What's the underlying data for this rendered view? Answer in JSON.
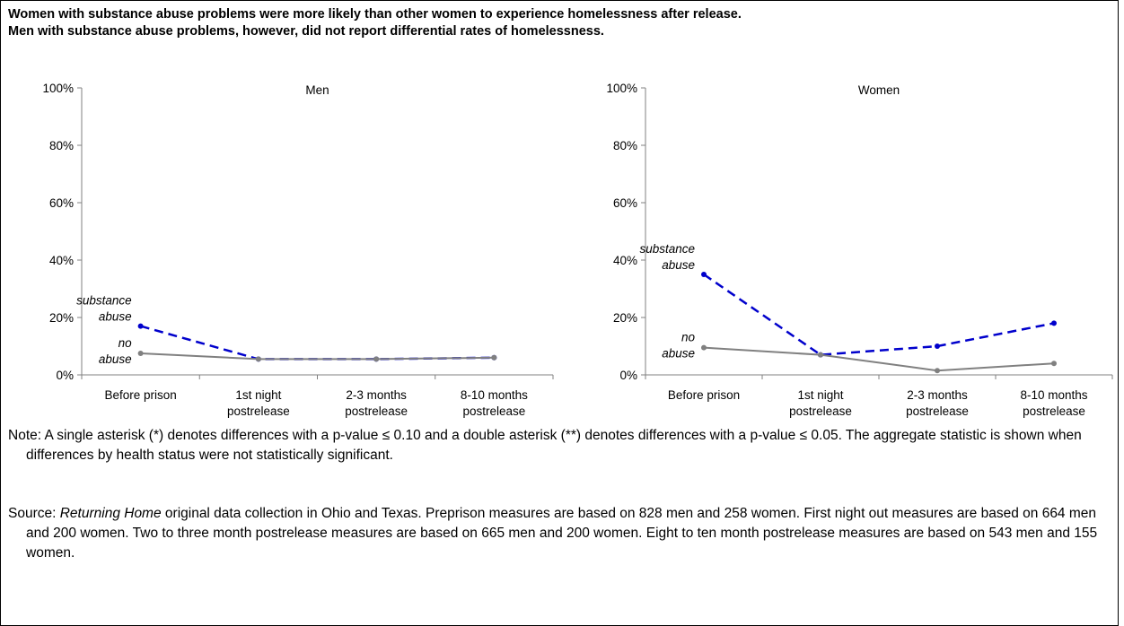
{
  "title": [
    "Women with substance abuse problems were more likely than other women to experience homelessness after release.",
    "Men with substance abuse problems, however, did not report differential rates of homelessness."
  ],
  "chart_data": [
    {
      "type": "line",
      "title": "Men",
      "categories": [
        "Before prison",
        "1st night\npostrelease",
        "2-3 months\npostrelease",
        "8-10 months\npostrelease"
      ],
      "series": [
        {
          "name": "substance\nabuse",
          "color": "#0000cc",
          "style": "dashed",
          "values": [
            17,
            5.5,
            5.5,
            6
          ]
        },
        {
          "name": "no\nabuse",
          "color": "#808080",
          "style": "solid",
          "values": [
            7.5,
            5.5,
            5.5,
            6
          ]
        }
      ],
      "ylim": [
        0,
        100
      ],
      "yticks": [
        {
          "value": 0,
          "label": "0%"
        },
        {
          "value": 20,
          "label": "20%"
        },
        {
          "value": 40,
          "label": "40%"
        },
        {
          "value": 60,
          "label": "60%"
        },
        {
          "value": 80,
          "label": "80%"
        },
        {
          "value": 100,
          "label": "100%"
        }
      ]
    },
    {
      "type": "line",
      "title": "Women",
      "categories": [
        "Before prison",
        "1st night\npostrelease",
        "2-3 months\npostrelease",
        "8-10 months\npostrelease"
      ],
      "series": [
        {
          "name": "substance\nabuse",
          "color": "#0000cc",
          "style": "dashed",
          "values": [
            35,
            7,
            10,
            18
          ]
        },
        {
          "name": "no\nabuse",
          "color": "#808080",
          "style": "solid",
          "values": [
            9.5,
            7,
            1.5,
            4
          ]
        }
      ],
      "ylim": [
        0,
        100
      ],
      "yticks": [
        {
          "value": 0,
          "label": "0%"
        },
        {
          "value": 20,
          "label": "20%"
        },
        {
          "value": 40,
          "label": "40%"
        },
        {
          "value": 60,
          "label": "60%"
        },
        {
          "value": 80,
          "label": "80%"
        },
        {
          "value": 100,
          "label": "100%"
        }
      ]
    }
  ],
  "notes": {
    "note": "Note: A single asterisk (*) denotes differences with a p-value ≤ 0.10 and a double asterisk (**) denotes differences with a p-value ≤ 0.05.  The aggregate statistic is shown when differences by health status were not statistically significant.",
    "source_label": "Source:",
    "source_title": "Returning Home",
    "source_text": "original data collection in Ohio and Texas.  Preprison measures are based on 828 men and 258 women.  First night out measures are based on 664 men and 200 women.  Two to three month postrelease measures are based on 665 men and 200 women.  Eight to ten month postrelease measures are based on 543 men and 155 women."
  }
}
